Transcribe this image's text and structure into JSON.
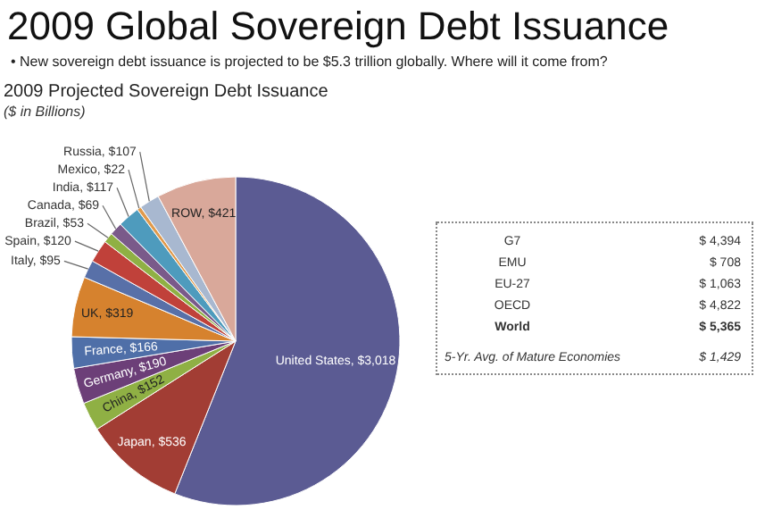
{
  "chart_data": [
    {
      "type": "pie",
      "title": "2009 Projected Sovereign Debt Issuance",
      "subtitle": "($ in Billions)",
      "annotations": [
        "2009 Global Sovereign Debt Issuance",
        "• New sovereign debt issuance is projected to be $5.3 trillion globally.  Where will it come from?"
      ],
      "categories": [
        "United States",
        "Japan",
        "China",
        "Germany",
        "France",
        "UK",
        "Italy",
        "Spain",
        "Brazil",
        "Canada",
        "India",
        "Mexico",
        "Russia",
        "ROW"
      ],
      "values": [
        3018,
        536,
        152,
        190,
        166,
        319,
        95,
        120,
        53,
        69,
        117,
        22,
        107,
        421
      ],
      "value_labels": [
        "$3,018",
        "$536",
        "$152",
        "$190",
        "$166",
        "$319",
        "$95",
        "$120",
        "$53",
        "$69",
        "$117",
        "$22",
        "$107",
        "$421"
      ],
      "colors": [
        "#5b5b93",
        "#a23d34",
        "#8fb044",
        "#6c3f78",
        "#4f6fa8",
        "#d6822e",
        "#5870a8",
        "#c0413a",
        "#8fb044",
        "#7a5a8a",
        "#4e9bbd",
        "#e09a4c",
        "#a8b8d0",
        "#d9a89a"
      ]
    },
    {
      "type": "other",
      "categories": [
        "G7",
        "EMU",
        "EU-27",
        "OECD",
        "World",
        "5-Yr. Avg. of Mature Economies"
      ],
      "values": [
        4394,
        708,
        1063,
        4822,
        5365,
        1429
      ],
      "value_labels": [
        "$ 4,394",
        "$ 708",
        "$ 1,063",
        "$ 4,822",
        "$ 5,365",
        "$ 1,429"
      ]
    }
  ]
}
